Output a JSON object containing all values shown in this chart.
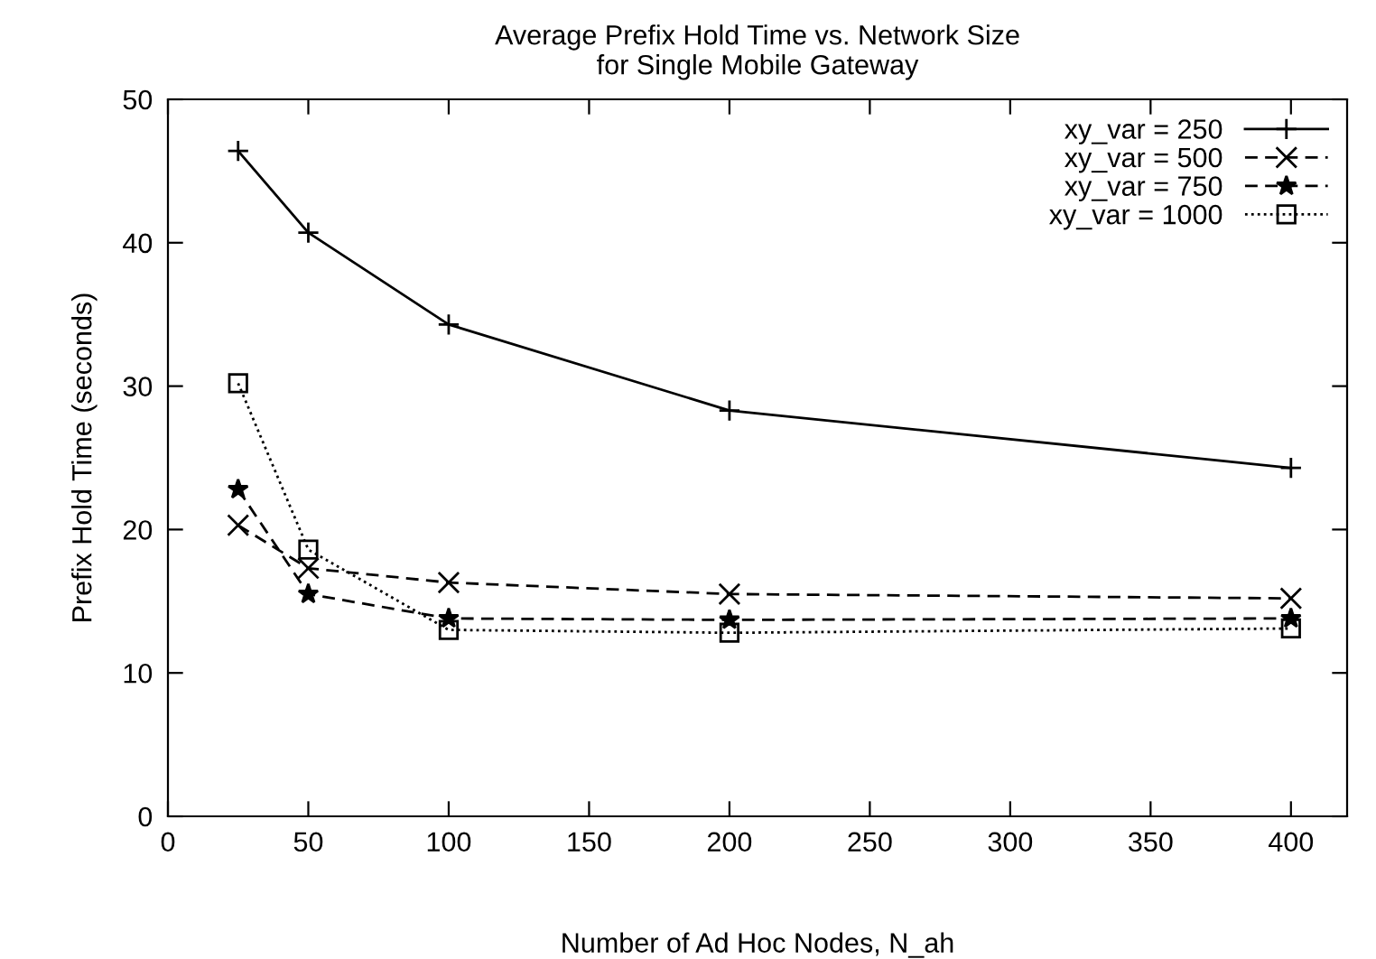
{
  "chart_data": {
    "type": "line",
    "title": "Average Prefix Hold Time vs. Network Size\nfor Single Mobile Gateway",
    "xlabel": "Number of Ad Hoc Nodes, N_ah",
    "ylabel": "Prefix Hold Time (seconds)",
    "x": [
      25,
      50,
      100,
      200,
      400
    ],
    "series": [
      {
        "name": "xy_var = 250",
        "color": "#000000",
        "values": [
          46.4,
          40.7,
          34.3,
          28.3,
          24.3
        ],
        "marker": "plus",
        "line_style": "solid"
      },
      {
        "name": "xy_var = 500",
        "color": "#000000",
        "values": [
          20.3,
          17.3,
          16.3,
          15.5,
          15.2
        ],
        "marker": "cross",
        "line_style": "dashed"
      },
      {
        "name": "xy_var = 750",
        "color": "#000000",
        "values": [
          22.8,
          15.5,
          13.8,
          13.7,
          13.8
        ],
        "marker": "star",
        "line_style": "dashed"
      },
      {
        "name": "xy_var = 1000",
        "color": "#000000",
        "values": [
          30.2,
          18.6,
          13.0,
          12.8,
          13.1
        ],
        "marker": "square",
        "line_style": "dotted"
      }
    ],
    "xlim": [
      0,
      420
    ],
    "xticks": [
      0,
      50,
      100,
      150,
      200,
      250,
      300,
      350,
      400
    ],
    "ylim": [
      0,
      50
    ],
    "yticks": [
      0,
      10,
      20,
      30,
      40,
      50
    ],
    "grid": false,
    "legend": "top right"
  }
}
